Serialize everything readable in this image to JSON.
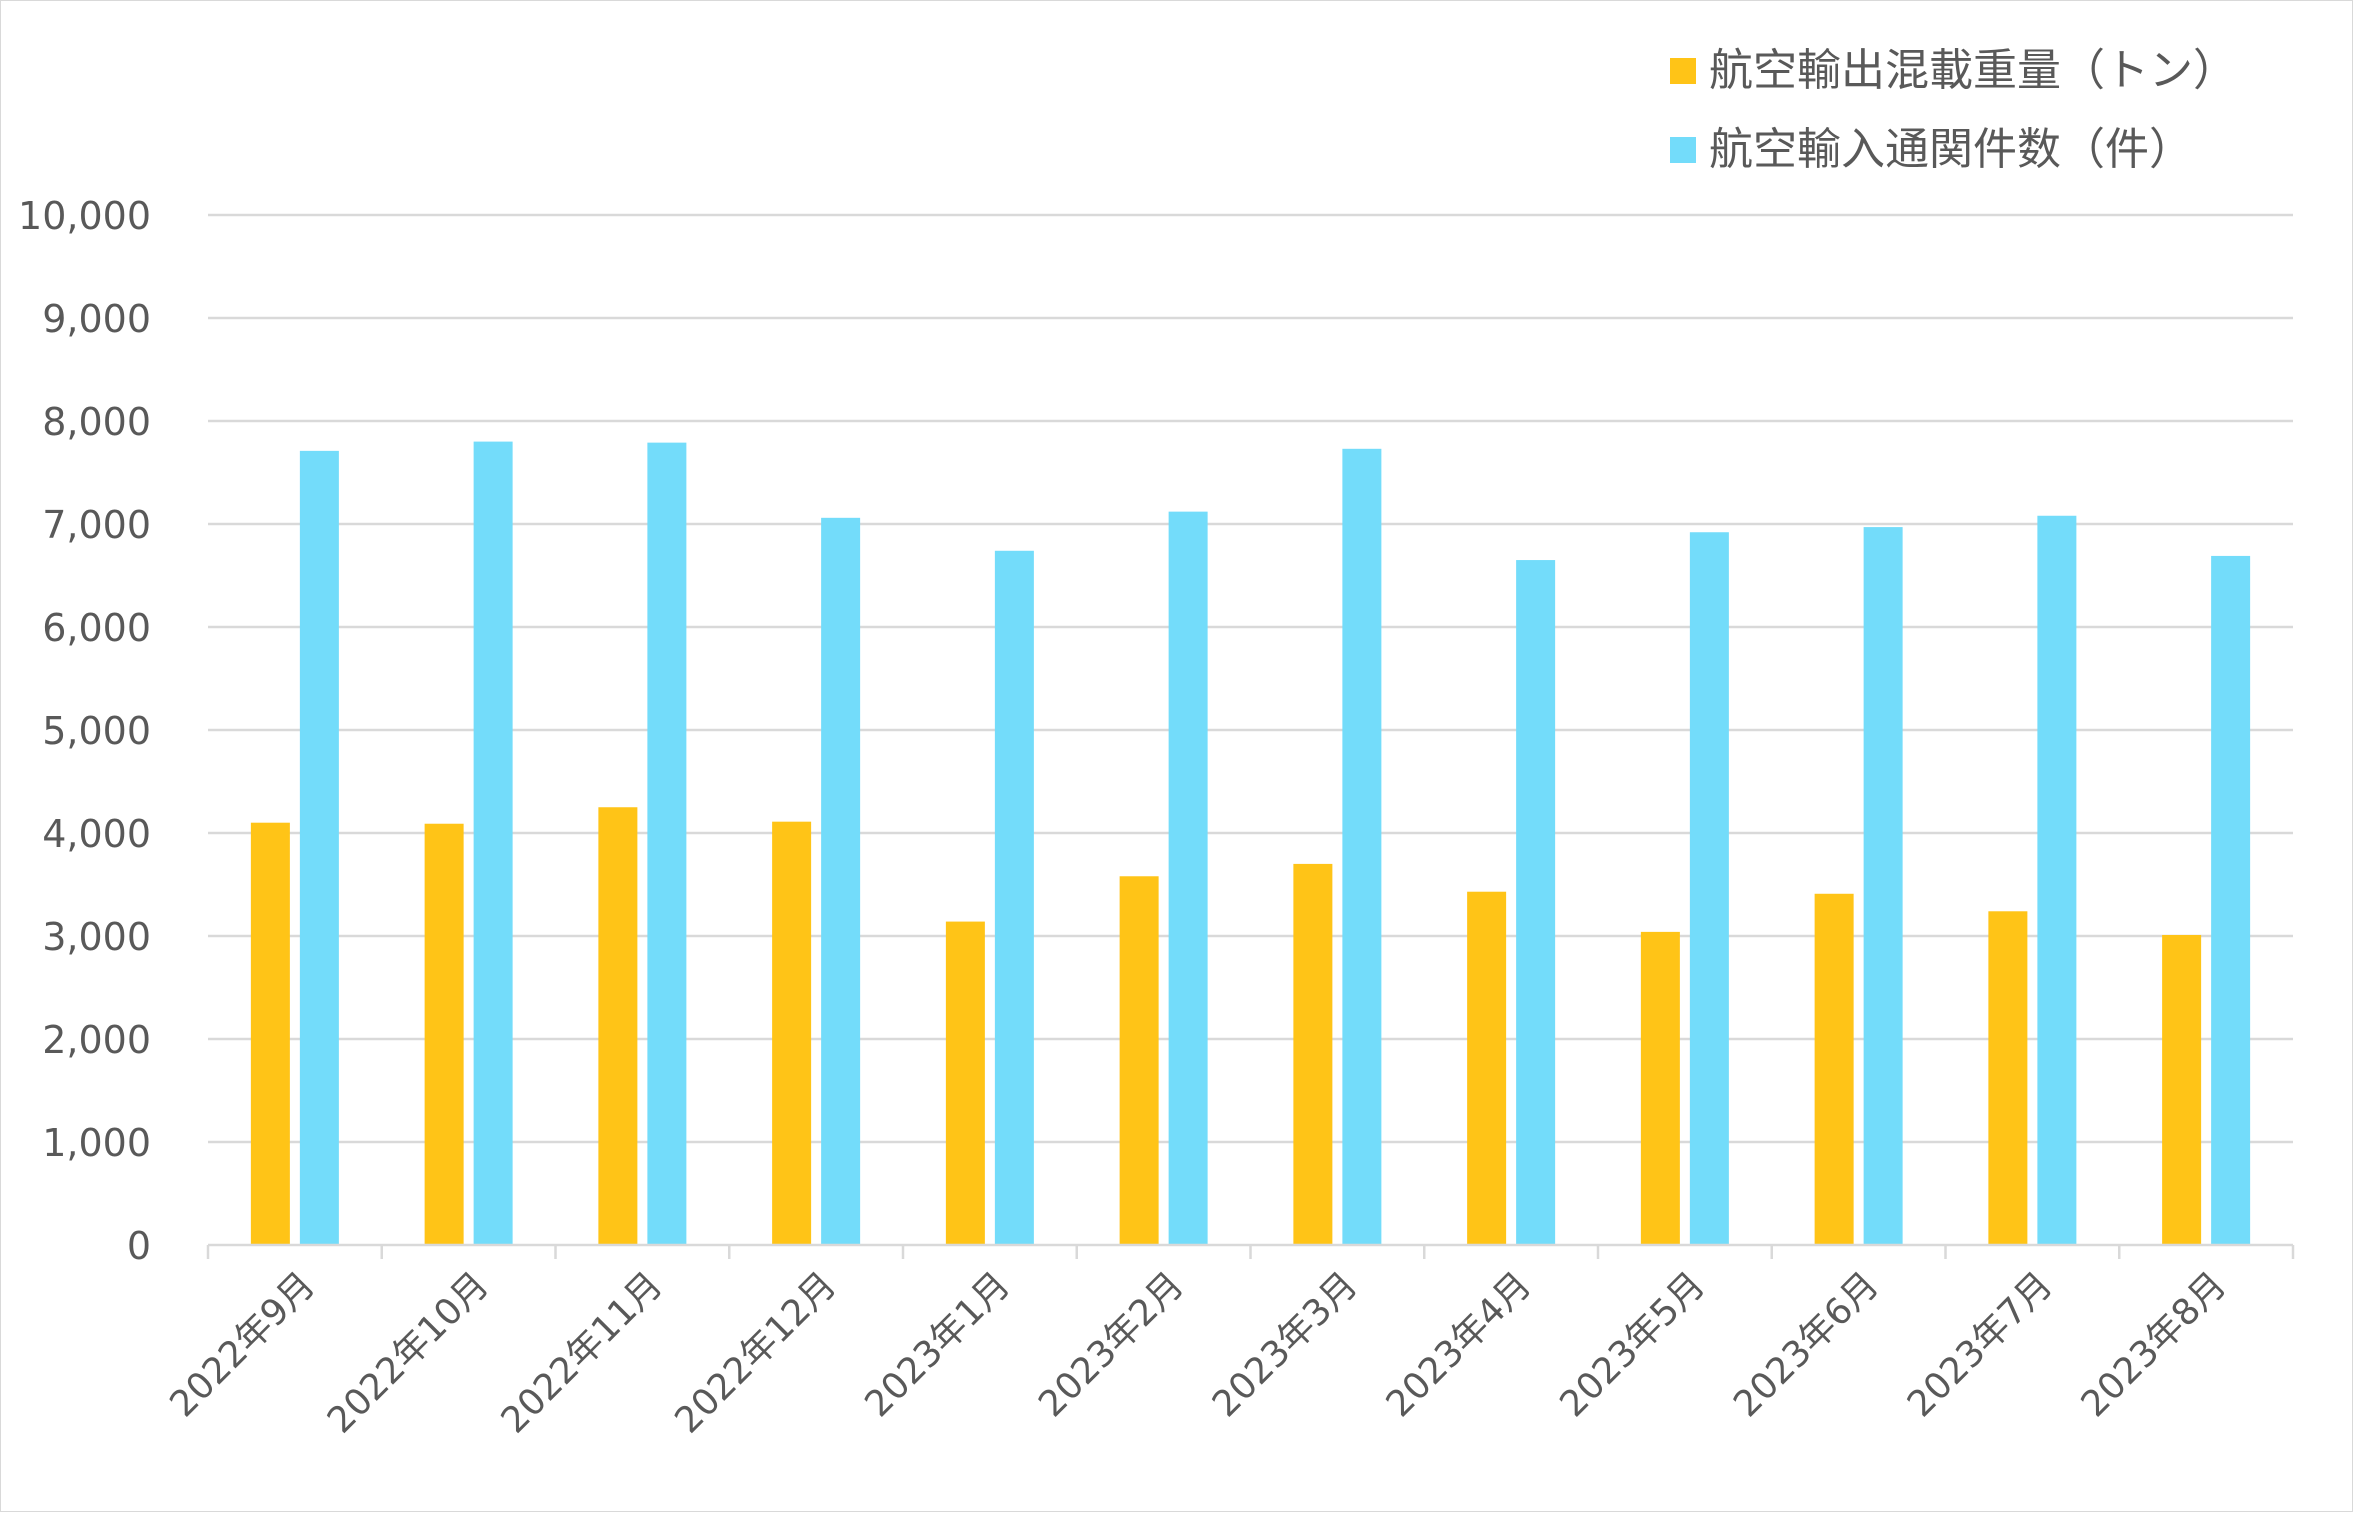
{
  "chart_data": {
    "type": "bar",
    "categories": [
      "2022年9月",
      "2022年10月",
      "2022年11月",
      "2022年12月",
      "2023年1月",
      "2023年2月",
      "2023年3月",
      "2023年4月",
      "2023年5月",
      "2023年6月",
      "2023年7月",
      "2023年8月"
    ],
    "series": [
      {
        "name": "航空輸出混載重量（トン）",
        "color": "#FFC417",
        "values": [
          4100,
          4090,
          4250,
          4110,
          3140,
          3580,
          3700,
          3430,
          3040,
          3410,
          3240,
          3010
        ]
      },
      {
        "name": "航空輸入通関件数（件）",
        "color": "#73DCFA",
        "values": [
          7710,
          7800,
          7790,
          7060,
          6740,
          7120,
          7730,
          6650,
          6920,
          6970,
          7080,
          6690
        ]
      }
    ],
    "yticks": [
      "0",
      "1,000",
      "2,000",
      "3,000",
      "4,000",
      "5,000",
      "6,000",
      "7,000",
      "8,000",
      "9,000",
      "10,000"
    ],
    "ylim": [
      0,
      10000
    ],
    "title": "",
    "xlabel": "",
    "ylabel": "",
    "grid": true,
    "legend_position": "top-right"
  }
}
